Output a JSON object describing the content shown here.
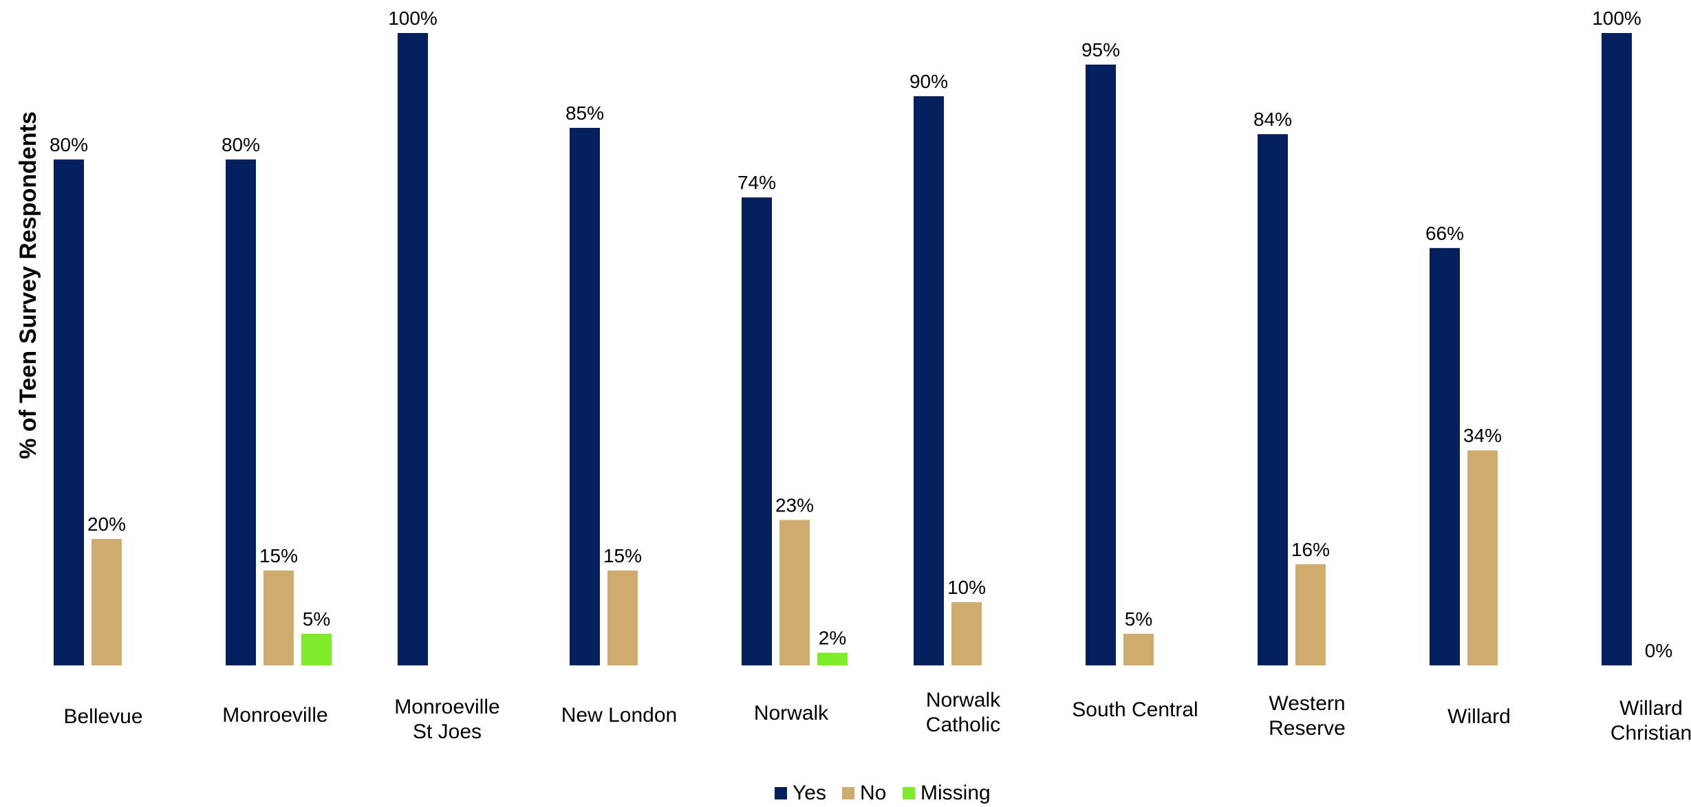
{
  "chart_data": {
    "type": "bar",
    "ylabel": "% of Teen Survey Respondents",
    "ylim": [
      0,
      100
    ],
    "grid": false,
    "legend_position": "bottom-center",
    "categories": [
      [
        "Bellevue"
      ],
      [
        "Monroeville"
      ],
      [
        "Monroeville",
        "St Joes"
      ],
      [
        "New London"
      ],
      [
        "Norwalk"
      ],
      [
        "Norwalk",
        "Catholic"
      ],
      [
        "South Central"
      ],
      [
        "Western",
        "Reserve"
      ],
      [
        "Willard"
      ],
      [
        "Willard",
        "Christian"
      ]
    ],
    "series": [
      {
        "name": "Yes",
        "color": "#03205c",
        "values": [
          80,
          80,
          100,
          85,
          74,
          90,
          95,
          84,
          66,
          100
        ],
        "labels": [
          "80%",
          "80%",
          "100%",
          "85%",
          "74%",
          "90%",
          "95%",
          "84%",
          "66%",
          "100%"
        ]
      },
      {
        "name": "No",
        "color": "#cdac6d",
        "values": [
          20,
          15,
          null,
          15,
          23,
          10,
          5,
          16,
          34,
          0
        ],
        "labels": [
          "20%",
          "15%",
          null,
          "15%",
          "23%",
          "10%",
          "5%",
          "16%",
          "34%",
          "0%"
        ]
      },
      {
        "name": "Missing",
        "color": "#7deb2a",
        "values": [
          null,
          5,
          null,
          null,
          2,
          null,
          null,
          null,
          null,
          null
        ],
        "labels": [
          null,
          "5%",
          null,
          null,
          "2%",
          null,
          null,
          null,
          null,
          null
        ]
      }
    ]
  }
}
